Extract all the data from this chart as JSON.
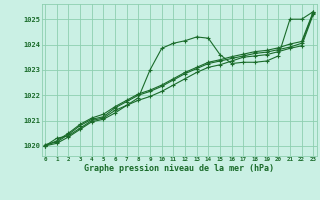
{
  "title": "Graphe pression niveau de la mer (hPa)",
  "xlabel_ticks": [
    0,
    1,
    2,
    3,
    4,
    5,
    6,
    7,
    8,
    9,
    10,
    11,
    12,
    13,
    14,
    15,
    16,
    17,
    18,
    19,
    20,
    21,
    22,
    23
  ],
  "ylim": [
    1019.6,
    1025.6
  ],
  "xlim": [
    -0.3,
    23.3
  ],
  "yticks": [
    1020,
    1021,
    1022,
    1023,
    1024,
    1025
  ],
  "background_color": "#caf0e4",
  "grid_color": "#8ecfb0",
  "line_color": "#1a6b2a",
  "line1": [
    1020.0,
    1020.3,
    1020.4,
    1020.7,
    1021.0,
    1021.1,
    1021.4,
    1021.6,
    1021.9,
    1023.0,
    1023.85,
    1024.05,
    1024.15,
    1024.3,
    1024.25,
    1023.6,
    1023.25,
    1023.3,
    1023.3,
    1023.35,
    1023.55,
    1025.0,
    1025.0,
    1025.3
  ],
  "line2": [
    1020.05,
    1020.15,
    1020.45,
    1020.8,
    1021.05,
    1021.15,
    1021.5,
    1021.75,
    1022.0,
    1022.15,
    1022.35,
    1022.6,
    1022.85,
    1023.05,
    1023.25,
    1023.35,
    1023.45,
    1023.55,
    1023.65,
    1023.7,
    1023.8,
    1023.9,
    1024.05,
    1025.25
  ],
  "line3": [
    1020.0,
    1020.1,
    1020.35,
    1020.65,
    1020.95,
    1021.05,
    1021.3,
    1021.6,
    1021.8,
    1021.95,
    1022.15,
    1022.4,
    1022.65,
    1022.9,
    1023.1,
    1023.2,
    1023.35,
    1023.5,
    1023.55,
    1023.6,
    1023.72,
    1023.85,
    1023.95,
    1025.2
  ],
  "line4": [
    1020.0,
    1020.2,
    1020.5,
    1020.85,
    1021.1,
    1021.25,
    1021.55,
    1021.8,
    1022.05,
    1022.2,
    1022.4,
    1022.65,
    1022.9,
    1023.1,
    1023.3,
    1023.4,
    1023.52,
    1023.62,
    1023.72,
    1023.77,
    1023.87,
    1024.02,
    1024.12,
    1025.3
  ]
}
